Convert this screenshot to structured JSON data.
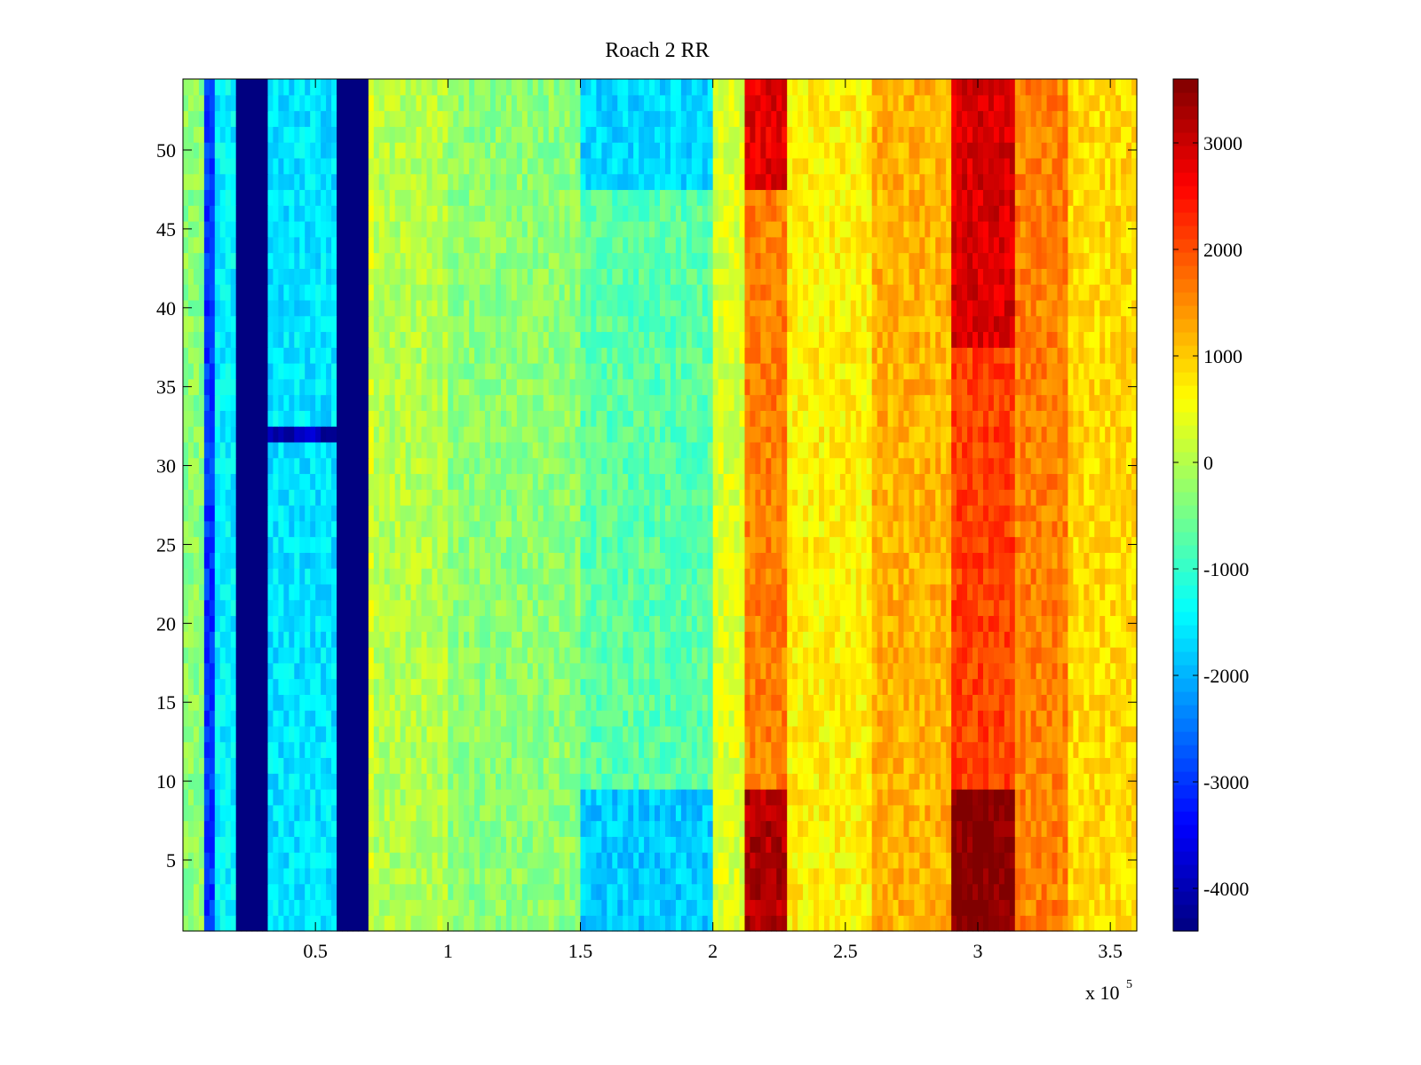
{
  "chart_data": {
    "type": "heatmap",
    "title": "Roach 2 RR",
    "xlabel": "",
    "ylabel": "",
    "x_range": [
      0,
      360000
    ],
    "y_range": [
      0.5,
      54.5
    ],
    "x_ticks": [
      50000,
      100000,
      150000,
      200000,
      250000,
      300000,
      350000
    ],
    "x_tick_labels": [
      "0.5",
      "1",
      "1.5",
      "2",
      "2.5",
      "3",
      "3.5"
    ],
    "x_exponent_label": "x 10",
    "x_exponent_power": "5",
    "y_ticks": [
      5,
      10,
      15,
      20,
      25,
      30,
      35,
      40,
      45,
      50
    ],
    "y_tick_labels": [
      "5",
      "10",
      "15",
      "20",
      "25",
      "30",
      "35",
      "40",
      "45",
      "50"
    ],
    "rows": 54,
    "colormap": "jet",
    "colorbar": {
      "range": [
        -4400,
        3600
      ],
      "ticks": [
        -4000,
        -3000,
        -2000,
        -1000,
        0,
        1000,
        2000,
        3000
      ],
      "tick_labels": [
        "-4000",
        "-3000",
        "-2000",
        "-1000",
        "0",
        "1000",
        "2000",
        "3000"
      ]
    },
    "column_profile": [
      {
        "x0": 0,
        "x1": 8000,
        "value": -300
      },
      {
        "x0": 8000,
        "x1": 12000,
        "value": -3000
      },
      {
        "x0": 12000,
        "x1": 20000,
        "value": -1500
      },
      {
        "x0": 20000,
        "x1": 33000,
        "value": -4400
      },
      {
        "x0": 33000,
        "x1": 58000,
        "value": -1600
      },
      {
        "x0": 58000,
        "x1": 70000,
        "value": -4400
      },
      {
        "x0": 70000,
        "x1": 73000,
        "value": 300
      },
      {
        "x0": 73000,
        "x1": 100000,
        "value": 0
      },
      {
        "x0": 100000,
        "x1": 150000,
        "value": -300
      },
      {
        "x0": 150000,
        "x1": 200000,
        "value": -700
      },
      {
        "x0": 200000,
        "x1": 212000,
        "value": 300
      },
      {
        "x0": 212000,
        "x1": 228000,
        "value": 1600
      },
      {
        "x0": 228000,
        "x1": 260000,
        "value": 700
      },
      {
        "x0": 260000,
        "x1": 290000,
        "value": 1200
      },
      {
        "x0": 290000,
        "x1": 315000,
        "value": 2100
      },
      {
        "x0": 315000,
        "x1": 335000,
        "value": 1600
      },
      {
        "x0": 335000,
        "x1": 360000,
        "value": 900
      }
    ],
    "row_offsets": [
      {
        "rows": [
          1,
          9
        ],
        "x0": 212000,
        "x1": 228000,
        "value": 3200
      },
      {
        "rows": [
          1,
          9
        ],
        "x0": 290000,
        "x1": 315000,
        "value": 3600
      },
      {
        "rows": [
          1,
          9
        ],
        "x0": 150000,
        "x1": 200000,
        "value": -1800
      },
      {
        "rows": [
          38,
          54
        ],
        "x0": 290000,
        "x1": 315000,
        "value": 2900
      },
      {
        "rows": [
          48,
          54
        ],
        "x0": 212000,
        "x1": 228000,
        "value": 2800
      },
      {
        "rows": [
          48,
          54
        ],
        "x0": 150000,
        "x1": 200000,
        "value": -1700
      },
      {
        "rows": [
          32,
          32
        ],
        "x0": 33000,
        "x1": 58000,
        "value": -4000
      }
    ]
  }
}
